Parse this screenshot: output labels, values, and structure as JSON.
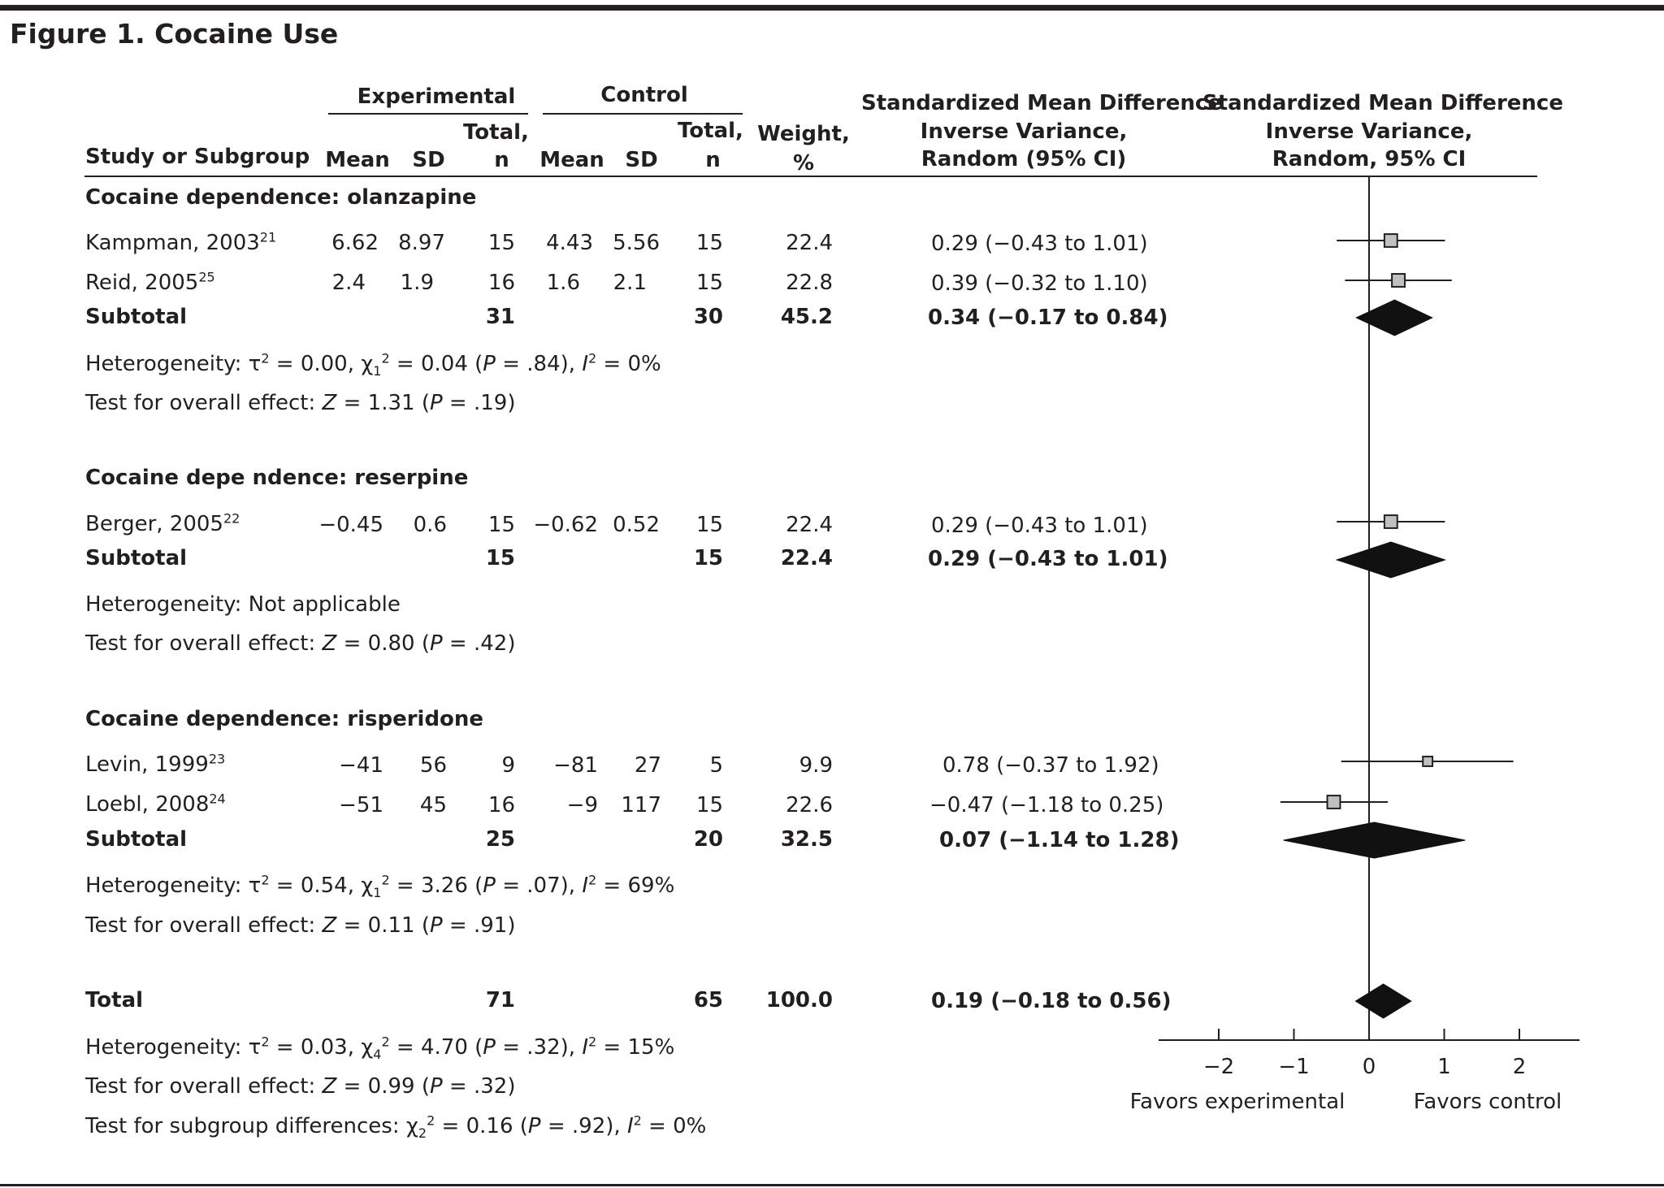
{
  "figure_title": "Figure 1. Cocaine Use",
  "headers": {
    "experimental": "Experimental",
    "control": "Control",
    "study": "Study or Subgroup",
    "mean": "Mean",
    "sd": "SD",
    "total_line1": "Total,",
    "total_line2": "n",
    "weight_line1": "Weight,",
    "weight_line2": "%",
    "smd_line1": "Standardized Mean Difference",
    "smd_line2": "Inverse Variance,",
    "smd_text_line3": "Random (95% CI)",
    "smd_plot_line3": "Random, 95% CI"
  },
  "groups": [
    {
      "title": "Cocaine dependence: olanzapine",
      "studies": [
        {
          "name": "Kampman, 2003",
          "ref": "21",
          "e_mean": "6.62",
          "e_sd": "8.97",
          "e_n": "15",
          "c_mean": "4.43",
          "c_sd": "5.56",
          "c_n": "15",
          "weight": "22.4",
          "ci_text": "0.29 (−0.43 to 1.01)"
        },
        {
          "name": "Reid, 2005",
          "ref": "25",
          "e_mean": "2.4",
          "e_sd": "1.9",
          "e_n": "16",
          "c_mean": "1.6",
          "c_sd": "2.1",
          "c_n": "15",
          "weight": "22.8",
          "ci_text": "0.39 (−0.32 to 1.10)"
        }
      ],
      "subtotal": {
        "label": "Subtotal",
        "e_n": "31",
        "c_n": "30",
        "weight": "45.2",
        "ci_text": "0.34 (−0.17 to 0.84)"
      },
      "heterogeneity": {
        "prefix": "Heterogeneity: τ",
        "a": " = 0.00, χ",
        "sub": "1",
        "b": " = 0.04 (",
        "p": "P",
        "c": " = .84), ",
        "i": "I",
        "d": " = 0%"
      },
      "overall": {
        "prefix": "Test for overall effect: ",
        "z": "Z",
        "a": " = 1.31 (",
        "p": "P",
        "b": " = .19)"
      }
    },
    {
      "title": "Cocaine depe ndence: reserpine",
      "studies": [
        {
          "name": "Berger, 2005",
          "ref": "22",
          "e_mean": "−0.45",
          "e_sd": "0.6",
          "e_n": "15",
          "c_mean": "−0.62",
          "c_sd": "0.52",
          "c_n": "15",
          "weight": "22.4",
          "ci_text": "0.29 (−0.43 to 1.01)"
        }
      ],
      "subtotal": {
        "label": "Subtotal",
        "e_n": "15",
        "c_n": "15",
        "weight": "22.4",
        "ci_text": "0.29 (−0.43 to 1.01)"
      },
      "heterogeneity_plain": "Heterogeneity: Not applicable",
      "overall": {
        "prefix": "Test for overall effect: ",
        "z": "Z",
        "a": " = 0.80 (",
        "p": "P",
        "b": " = .42)"
      }
    },
    {
      "title": "Cocaine dependence: risperidone",
      "studies": [
        {
          "name": "Levin, 1999",
          "ref": "23",
          "e_mean": "−41",
          "e_sd": "56",
          "e_n": "9",
          "c_mean": "−81",
          "c_sd": "27",
          "c_n": "5",
          "weight": "9.9",
          "ci_text": "0.78 (−0.37 to 1.92)"
        },
        {
          "name": "Loebl, 2008",
          "ref": "24",
          "e_mean": "−51",
          "e_sd": "45",
          "e_n": "16",
          "c_mean": "−9",
          "c_sd": "117",
          "c_n": "15",
          "weight": "22.6",
          "ci_text": "−0.47 (−1.18 to 0.25)"
        }
      ],
      "subtotal": {
        "label": "Subtotal",
        "e_n": "25",
        "c_n": "20",
        "weight": "32.5",
        "ci_text": "0.07 (−1.14 to 1.28)"
      },
      "heterogeneity": {
        "prefix": "Heterogeneity: τ",
        "a": " = 0.54, χ",
        "sub": "1",
        "b": " = 3.26 (",
        "p": "P",
        "c": " = .07), ",
        "i": "I",
        "d": " = 69%"
      },
      "overall": {
        "prefix": "Test for overall effect: ",
        "z": "Z",
        "a": " = 0.11 (",
        "p": "P",
        "b": " = .91)"
      }
    }
  ],
  "total": {
    "label": "Total",
    "e_n": "71",
    "c_n": "65",
    "weight": "100.0",
    "ci_text": "0.19 (−0.18 to 0.56)",
    "heterogeneity": {
      "prefix": "Heterogeneity: τ",
      "a": " = 0.03, χ",
      "sub": "4",
      "b": " = 4.70 (",
      "p": "P",
      "c": " = .32), ",
      "i": "I",
      "d": " = 15%"
    },
    "overall": {
      "prefix": "Test for overall effect: ",
      "z": "Z",
      "a": " = 0.99 (",
      "p": "P",
      "b": " = .32)"
    },
    "subgroup": {
      "prefix": "Test for subgroup differences: χ",
      "sub": "2",
      "a": " = 0.16 (",
      "p": "P",
      "b": " = .92), ",
      "i": "I",
      "c": " = 0%"
    }
  },
  "sup2": "2",
  "axis": {
    "ticks": [
      -2,
      -1,
      0,
      1,
      2
    ],
    "tick_labels": [
      "−2",
      "−1",
      "0",
      "1",
      "2"
    ],
    "left_label": "Favors experimental",
    "right_label": "Favors control"
  },
  "colors": {
    "ink": "#231f20",
    "square_fill": "#c0c0c0",
    "diamond": "#111111"
  },
  "chart_data": {
    "type": "forest",
    "xlim": [
      -2.8,
      2.8
    ],
    "xticks": [
      -2,
      -1,
      0,
      1,
      2
    ],
    "studies": [
      {
        "label": "Kampman, 2003",
        "estimate": 0.29,
        "lower": -0.43,
        "upper": 1.01,
        "weight": 22.4
      },
      {
        "label": "Reid, 2005",
        "estimate": 0.39,
        "lower": -0.32,
        "upper": 1.1,
        "weight": 22.8
      },
      {
        "label": "Berger, 2005",
        "estimate": 0.29,
        "lower": -0.43,
        "upper": 1.01,
        "weight": 22.4
      },
      {
        "label": "Levin, 1999",
        "estimate": 0.78,
        "lower": -0.37,
        "upper": 1.92,
        "weight": 9.9
      },
      {
        "label": "Loebl, 2008",
        "estimate": -0.47,
        "lower": -1.18,
        "upper": 0.25,
        "weight": 22.6
      }
    ],
    "subtotals": [
      {
        "label": "Subtotal",
        "group": "Cocaine dependence: olanzapine",
        "estimate": 0.34,
        "lower": -0.17,
        "upper": 0.84,
        "weight": 45.2
      },
      {
        "label": "Subtotal",
        "group": "Cocaine depe ndence: reserpine",
        "estimate": 0.29,
        "lower": -0.43,
        "upper": 1.01,
        "weight": 22.4
      },
      {
        "label": "Subtotal",
        "group": "Cocaine dependence: risperidone",
        "estimate": 0.07,
        "lower": -1.14,
        "upper": 1.28,
        "weight": 32.5
      }
    ],
    "overall": {
      "label": "Total",
      "estimate": 0.19,
      "lower": -0.18,
      "upper": 0.56,
      "weight": 100.0
    }
  }
}
